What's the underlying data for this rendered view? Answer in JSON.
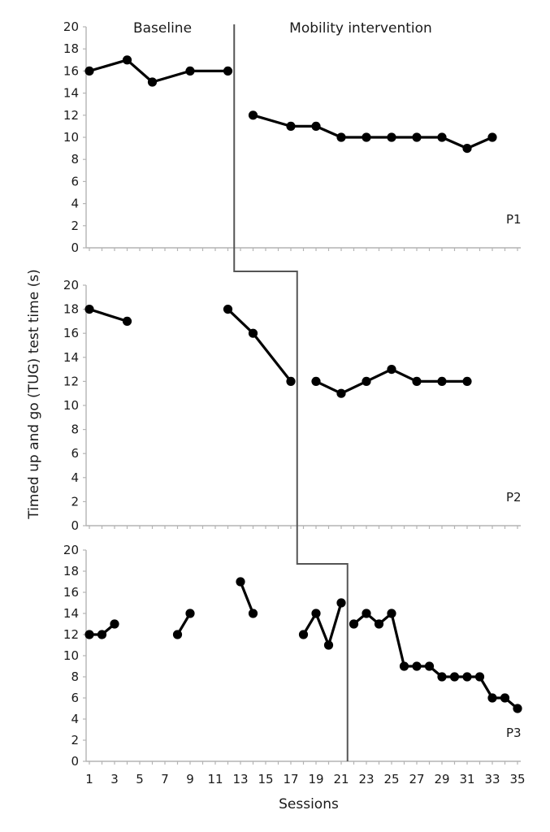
{
  "chart_data": {
    "type": "line",
    "ylabel": "Timed up and go (TUG) test time (s)",
    "xlabel": "Sessions",
    "phase_labels": [
      "Baseline",
      "Mobility intervention"
    ],
    "ylim": [
      0,
      20
    ],
    "xlim": [
      1,
      35
    ],
    "x_ticks": [
      1,
      3,
      5,
      7,
      9,
      11,
      13,
      15,
      17,
      19,
      21,
      23,
      25,
      27,
      29,
      31,
      33,
      35
    ],
    "y_ticks": [
      0,
      2,
      4,
      6,
      8,
      10,
      12,
      14,
      16,
      18,
      20
    ],
    "phase_change_after_session": [
      12.5,
      17.5,
      21.5
    ],
    "panels": [
      {
        "label": "P1",
        "segments": [
          [
            [
              1,
              16
            ],
            [
              4,
              17
            ],
            [
              6,
              15
            ],
            [
              9,
              16
            ],
            [
              12,
              16
            ]
          ],
          [
            [
              14,
              12
            ],
            [
              17,
              11
            ],
            [
              19,
              11
            ],
            [
              21,
              10
            ],
            [
              23,
              10
            ],
            [
              25,
              10
            ],
            [
              27,
              10
            ],
            [
              29,
              10
            ],
            [
              31,
              9
            ],
            [
              33,
              10
            ]
          ]
        ]
      },
      {
        "label": "P2",
        "segments": [
          [
            [
              1,
              18
            ],
            [
              4,
              17
            ]
          ],
          [
            [
              12,
              18
            ],
            [
              14,
              16
            ],
            [
              17,
              12
            ]
          ],
          [
            [
              19,
              12
            ],
            [
              21,
              11
            ],
            [
              23,
              12
            ],
            [
              25,
              13
            ],
            [
              27,
              12
            ],
            [
              29,
              12
            ],
            [
              31,
              12
            ]
          ]
        ]
      },
      {
        "label": "P3",
        "segments": [
          [
            [
              1,
              12
            ],
            [
              2,
              12
            ],
            [
              3,
              13
            ]
          ],
          [
            [
              8,
              12
            ],
            [
              9,
              14
            ]
          ],
          [
            [
              13,
              17
            ],
            [
              14,
              14
            ]
          ],
          [
            [
              18,
              12
            ],
            [
              19,
              14
            ],
            [
              20,
              11
            ],
            [
              21,
              15
            ]
          ],
          [
            [
              22,
              13
            ],
            [
              23,
              14
            ],
            [
              24,
              13
            ],
            [
              25,
              14
            ],
            [
              26,
              9
            ],
            [
              27,
              9
            ],
            [
              28,
              9
            ],
            [
              29,
              8
            ],
            [
              30,
              8
            ],
            [
              31,
              8
            ],
            [
              32,
              8
            ],
            [
              33,
              6
            ],
            [
              34,
              6
            ],
            [
              35,
              5
            ]
          ]
        ]
      }
    ]
  }
}
